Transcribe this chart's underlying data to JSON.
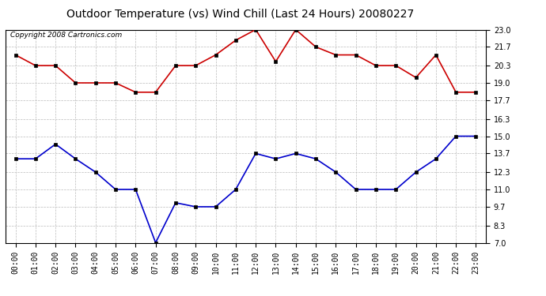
{
  "title": "Outdoor Temperature (vs) Wind Chill (Last 24 Hours) 20080227",
  "copyright": "Copyright 2008 Cartronics.com",
  "x_labels": [
    "00:00",
    "01:00",
    "02:00",
    "03:00",
    "04:00",
    "05:00",
    "06:00",
    "07:00",
    "08:00",
    "09:00",
    "10:00",
    "11:00",
    "12:00",
    "13:00",
    "14:00",
    "15:00",
    "16:00",
    "17:00",
    "18:00",
    "19:00",
    "20:00",
    "21:00",
    "22:00",
    "23:00"
  ],
  "red_data": [
    21.1,
    20.3,
    20.3,
    19.0,
    19.0,
    19.0,
    18.3,
    18.3,
    20.3,
    20.3,
    21.1,
    22.2,
    23.0,
    20.6,
    23.0,
    21.7,
    21.1,
    21.1,
    20.3,
    20.3,
    19.4,
    21.1,
    18.3,
    18.3
  ],
  "blue_data": [
    13.3,
    13.3,
    14.4,
    13.3,
    12.3,
    11.0,
    11.0,
    7.0,
    10.0,
    9.7,
    9.7,
    11.0,
    13.7,
    13.3,
    13.7,
    13.3,
    12.3,
    11.0,
    11.0,
    11.0,
    12.3,
    13.3,
    15.0,
    15.0
  ],
  "red_color": "#cc0000",
  "blue_color": "#0000cc",
  "marker": "s",
  "markersize": 3,
  "linewidth": 1.2,
  "ylim": [
    7.0,
    23.0
  ],
  "yticks": [
    7.0,
    8.3,
    9.7,
    11.0,
    12.3,
    13.7,
    15.0,
    16.3,
    17.7,
    19.0,
    20.3,
    21.7,
    23.0
  ],
  "background_color": "#ffffff",
  "grid_color": "#bbbbbb",
  "title_fontsize": 10,
  "copyright_fontsize": 6.5,
  "tick_fontsize": 7
}
